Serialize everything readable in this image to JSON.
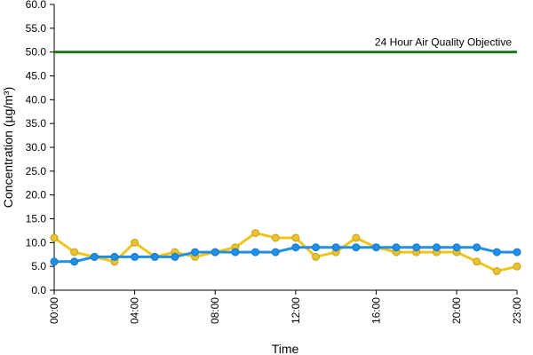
{
  "chart_data": {
    "type": "line",
    "xlabel": "Time",
    "ylabel": "Concentration (µg/m³)",
    "ylim": [
      0,
      60
    ],
    "y_ticks": [
      "0.0",
      "5.0",
      "10.0",
      "15.0",
      "20.0",
      "25.0",
      "30.0",
      "35.0",
      "40.0",
      "45.0",
      "50.0",
      "55.0",
      "60.0"
    ],
    "x_ticks": [
      {
        "hour": 0,
        "label": "00:00"
      },
      {
        "hour": 4,
        "label": "04:00"
      },
      {
        "hour": 8,
        "label": "08:00"
      },
      {
        "hour": 12,
        "label": "12:00"
      },
      {
        "hour": 16,
        "label": "16:00"
      },
      {
        "hour": 20,
        "label": "20:00"
      },
      {
        "hour": 23,
        "label": "23:00"
      }
    ],
    "x": [
      0,
      1,
      2,
      3,
      4,
      5,
      6,
      7,
      8,
      9,
      10,
      11,
      12,
      13,
      14,
      15,
      16,
      17,
      18,
      19,
      20,
      21,
      22,
      23
    ],
    "series": [
      {
        "color": "#f0c419",
        "marker_fill": "#e8c230",
        "values": [
          11,
          8,
          7,
          6,
          10,
          7,
          8,
          7,
          8,
          9,
          12,
          11,
          11,
          7,
          8,
          11,
          9,
          8,
          8,
          8,
          8,
          6,
          4,
          5
        ]
      },
      {
        "color": "#1e90e8",
        "marker_fill": "#1e90e8",
        "values": [
          6,
          6,
          7,
          7,
          7,
          7,
          7,
          8,
          8,
          8,
          8,
          8,
          9,
          9,
          9,
          9,
          9,
          9,
          9,
          9,
          9,
          9,
          8,
          8
        ]
      }
    ],
    "reference_line": {
      "value": 50,
      "label": "24 Hour Air Quality Objective",
      "color": "#1f7a1f"
    },
    "grid": false,
    "legend": "none"
  }
}
